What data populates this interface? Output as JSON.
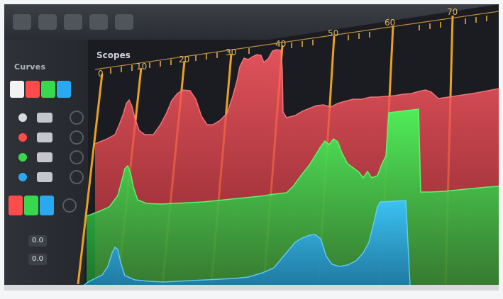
{
  "scope_panel": {
    "title": "Scopes",
    "ruler_ticks": [
      "0",
      "10",
      "20",
      "30",
      "40",
      "50",
      "60",
      "70"
    ],
    "channels": [
      {
        "name": "red",
        "color": "#ff5a63"
      },
      {
        "name": "green",
        "color": "#2ee64a"
      },
      {
        "name": "blue",
        "color": "#2aa9f0"
      }
    ]
  },
  "sidebar": {
    "panel_label": "Curves",
    "values": [
      "0.0",
      "0.0"
    ]
  },
  "icons": {
    "undo": "undo-icon",
    "settings": "gear-icon",
    "wheel": "color-wheel-icon"
  },
  "colors": {
    "guide": "#ffb020",
    "background": "#1a1c21"
  }
}
